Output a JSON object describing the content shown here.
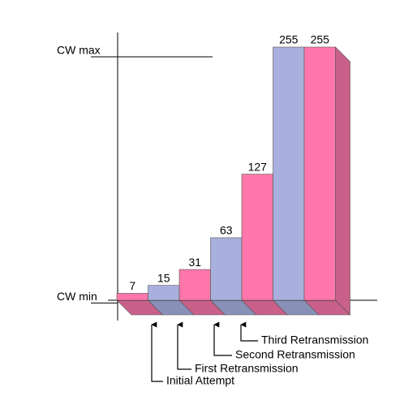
{
  "chart_data": {
    "type": "bar3d",
    "categories": [
      null,
      null,
      null,
      null,
      null,
      null,
      null
    ],
    "values": [
      7,
      15,
      31,
      63,
      127,
      255,
      255
    ],
    "colors": [
      "#ff77aa",
      "#aab0dd",
      "#ff77aa",
      "#aab0dd",
      "#ff77aa",
      "#aab0dd",
      "#ff77aa"
    ],
    "ylim": [
      0,
      255
    ],
    "yticks": [
      {
        "value": 7,
        "label": "CW min"
      },
      {
        "value": 255,
        "label": "CW max"
      }
    ],
    "annotations": [
      "Initial Attempt",
      "First Retransmission",
      "Second Retransmission",
      "Third Retransmission"
    ]
  }
}
